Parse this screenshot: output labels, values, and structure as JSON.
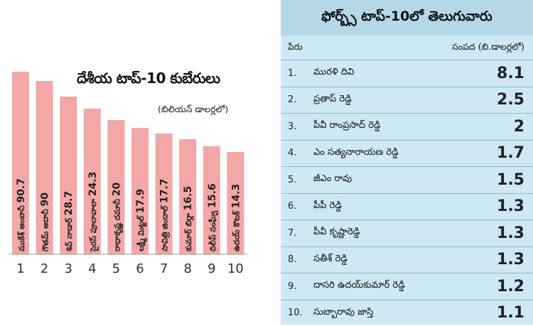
{
  "chart_data": {
    "type": "bar",
    "title": "దేశీయ టాప్-10 కుబేరులు",
    "subtitle": "(బిలియన్ డాలర్లలో)",
    "ranks": [
      "1",
      "2",
      "3",
      "4",
      "5",
      "6",
      "7",
      "8",
      "9",
      "10"
    ],
    "categories": [
      "ముకేశ్ అంబానీ",
      "గౌతమ్ అదానీ",
      "శివ్ నాడార్",
      "సైరస్ పూనావాలా",
      "రాధాకృష్ణ దమానీ",
      "లక్ష్మీ మిట్టల్",
      "సావిత్రి జిందాల్",
      "కుమార్ బిర్లా",
      "దిలీప్ సంఘ్వీ",
      "ఉదయ్ కొటక్"
    ],
    "values": [
      90.7,
      90,
      28.7,
      24.3,
      20,
      17.9,
      17.7,
      16.5,
      15.6,
      14.3
    ],
    "value_labels": [
      "90.7",
      "90",
      "28.7",
      "24.3",
      "20",
      "17.9",
      "17.7",
      "16.5",
      "15.6",
      "14.3"
    ],
    "bar_color": "#f3a7a7"
  },
  "table": {
    "title": "ఫోర్బ్స్ టాప్-10లో తెలుగువారు",
    "header_name": "పేరు",
    "header_wealth": "సంపద (బి.డాలర్లలో)",
    "rows": [
      {
        "rank": "1.",
        "name": "మురళి దివి",
        "value": "8.1"
      },
      {
        "rank": "2.",
        "name": "ప్రతాప్ రెడ్డి",
        "value": "2.5"
      },
      {
        "rank": "3.",
        "name": "పీవీ రాంప్రసాద్ రెడ్డి",
        "value": "2"
      },
      {
        "rank": "4.",
        "name": "ఎం సత్యనారాయణ రెడ్డి",
        "value": "1.7"
      },
      {
        "rank": "5.",
        "name": "జీఎం రావు",
        "value": "1.5"
      },
      {
        "rank": "6.",
        "name": "పీపీ రెడ్డి",
        "value": "1.3"
      },
      {
        "rank": "7.",
        "name": "పీవీ కృష్ణారెడ్డి",
        "value": "1.3"
      },
      {
        "rank": "8.",
        "name": "సతీశ్ రెడ్డి",
        "value": "1.3"
      },
      {
        "rank": "9.",
        "name": "దాసరి ఉదయ్‌కుమార్ రెడ్డి",
        "value": "1.2"
      },
      {
        "rank": "10.",
        "name": "సుబ్బారావు జాస్తి",
        "value": "1.1"
      }
    ]
  }
}
